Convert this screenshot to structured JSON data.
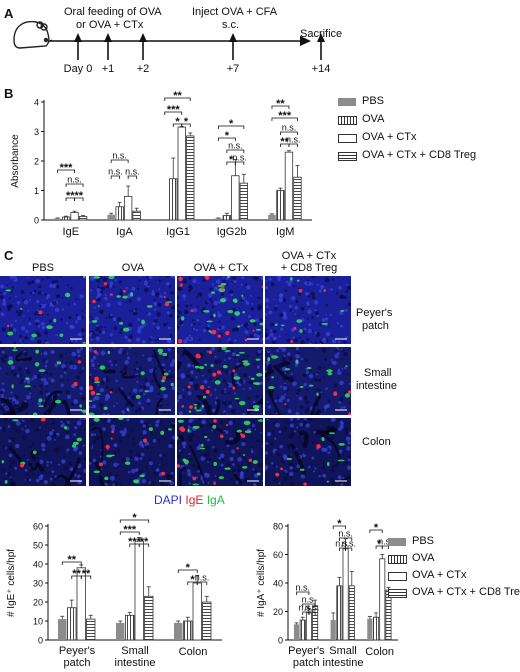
{
  "panels": {
    "a": "A",
    "b": "B",
    "c": "C"
  },
  "timeline": {
    "feeding_label_1": "Oral feeding of OVA",
    "feeding_label_2": "or OVA + CTx",
    "inject_label_1": "Inject OVA + CFA",
    "inject_label_2": "s.c.",
    "sacrifice_label": "Sacrifice",
    "days": [
      "Day 0",
      "+1",
      "+2",
      "+7",
      "+14"
    ]
  },
  "legend": {
    "items": [
      "PBS",
      "OVA",
      "OVA + CTx",
      "OVA + CTx  + CD8 Treg"
    ]
  },
  "legend_bottom": {
    "items": [
      "PBS",
      "OVA",
      "OVA + CTx",
      "OVA + CTx + CD8 Treg"
    ]
  },
  "micro": {
    "columns": [
      "PBS",
      "OVA",
      "OVA + CTx",
      "OVA + CTx",
      "+ CD8 Treg"
    ],
    "rows": [
      "Peyer's",
      "patch",
      "Small",
      "intestine",
      "Colon"
    ],
    "stain_dapi": "DAPI",
    "stain_ige": "IgE",
    "stain_iga": "IgA"
  },
  "colors": {
    "pbs": "#8c8c8c",
    "ige": "#ff2a3a",
    "iga": "#37e05a",
    "dapi": "#2a32c8"
  },
  "chart_data": [
    {
      "type": "bar",
      "ylabel": "Absorbance",
      "ylim": [
        0,
        4
      ],
      "yticks": [
        "0",
        "1",
        "2",
        "3",
        "4"
      ],
      "categories": [
        "IgE",
        "IgA",
        "IgG1",
        "IgG2b",
        "IgM"
      ],
      "series": [
        {
          "name": "PBS",
          "values": [
            0.05,
            0.18,
            0.0,
            0.05,
            0.18
          ],
          "errors": [
            0.02,
            0.05,
            0.0,
            0.02,
            0.03
          ]
        },
        {
          "name": "OVA",
          "values": [
            0.1,
            0.45,
            1.4,
            0.15,
            1.0
          ],
          "errors": [
            0.03,
            0.15,
            0.7,
            0.08,
            0.08
          ]
        },
        {
          "name": "OVA + CTx",
          "values": [
            0.25,
            0.8,
            3.15,
            1.5,
            2.3
          ],
          "errors": [
            0.05,
            0.35,
            0.02,
            0.55,
            0.05
          ]
        },
        {
          "name": "OVA + CTx  + CD8 Treg",
          "values": [
            0.12,
            0.3,
            2.85,
            1.25,
            1.45
          ],
          "errors": [
            0.03,
            0.1,
            0.1,
            0.3,
            0.4
          ]
        }
      ],
      "significance": [
        "***",
        "n.s.",
        "****",
        "n.s.",
        "n.s.",
        "n.s.",
        "**",
        "***",
        "*",
        "*",
        "*",
        "*",
        "n.s.",
        "*",
        "n.s.",
        "**",
        "***",
        "n.s.",
        "**",
        "n.s."
      ]
    },
    {
      "type": "bar",
      "ylabel": "# IgE⁺ cells/hpf",
      "ylim": [
        0,
        60
      ],
      "yticks": [
        "0",
        "10",
        "20",
        "30",
        "40",
        "50",
        "60"
      ],
      "categories": [
        "Peyer's patch",
        "Small intestine",
        "Colon"
      ],
      "series": [
        {
          "name": "PBS",
          "values": [
            11,
            9,
            9
          ],
          "errors": [
            1.5,
            1,
            1
          ]
        },
        {
          "name": "OVA",
          "values": [
            17,
            13,
            10
          ],
          "errors": [
            4,
            1.5,
            2
          ]
        },
        {
          "name": "OVA + CTx",
          "values": [
            38,
            52,
            30
          ],
          "errors": [
            1.5,
            2,
            4
          ]
        },
        {
          "name": "OVA + CTx + CD8 Treg",
          "values": [
            11,
            23,
            20
          ],
          "errors": [
            2,
            5,
            3
          ]
        }
      ],
      "significance": [
        "**",
        "****",
        "*",
        "***",
        "*****",
        "*",
        "*",
        "n.s."
      ]
    },
    {
      "type": "bar",
      "ylabel": "# IgA⁺ cells/hpf",
      "ylim": [
        0,
        80
      ],
      "yticks": [
        "0",
        "20",
        "40",
        "60",
        "80"
      ],
      "categories": [
        "Peyer's patch",
        "Small intestine",
        "Colon"
      ],
      "series": [
        {
          "name": "PBS",
          "values": [
            11,
            14,
            15
          ],
          "errors": [
            1,
            5,
            1.5
          ]
        },
        {
          "name": "OVA",
          "values": [
            14,
            38,
            16
          ],
          "errors": [
            2,
            6,
            3
          ]
        },
        {
          "name": "OVA + CTx",
          "values": [
            19,
            64,
            57
          ],
          "errors": [
            3,
            7,
            3
          ]
        },
        {
          "name": "OVA + CTx + CD8 Treg",
          "values": [
            24,
            38,
            35
          ],
          "errors": [
            4,
            10,
            2
          ]
        }
      ],
      "significance": [
        "n.s.",
        "n.s.",
        "n.s.",
        "n.s.",
        "*",
        "n.s.",
        "n.s.",
        "n.s.",
        "*",
        "*",
        "n.s."
      ]
    }
  ]
}
